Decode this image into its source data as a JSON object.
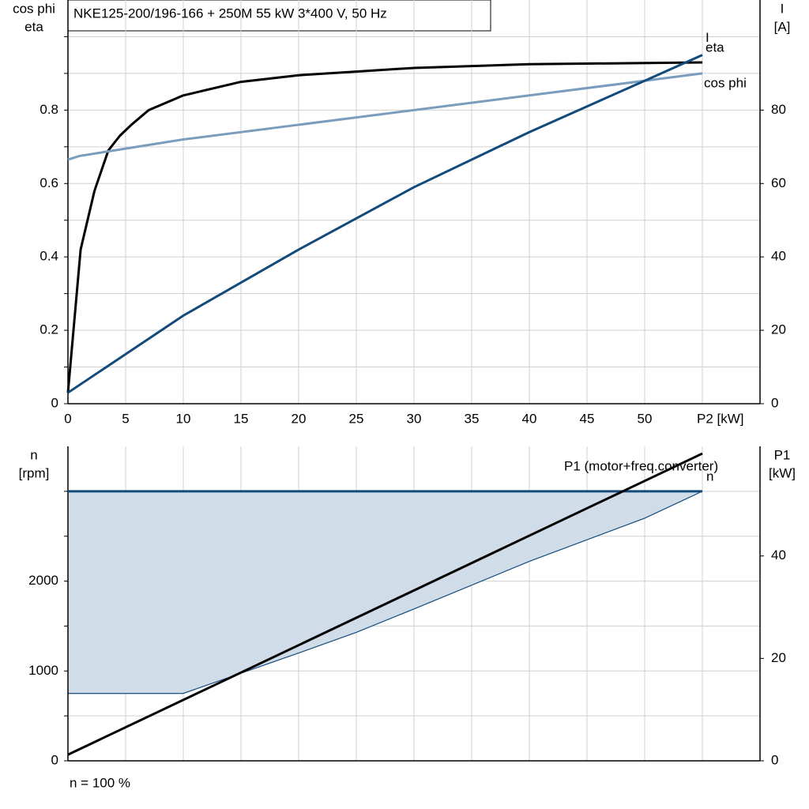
{
  "chart_data": [
    {
      "type": "line",
      "title": "NKE125-200/196-166 + 250M   55 kW   3*400 V, 50 Hz",
      "y_label": [
        "cos phi",
        "eta"
      ],
      "y2_label": [
        "I",
        "[A]"
      ],
      "xlim": [
        0,
        60
      ],
      "xticks": [
        0,
        5,
        10,
        15,
        20,
        25,
        30,
        35,
        40,
        45,
        50,
        {
          "value": 55,
          "label": "P2 [kW]"
        }
      ],
      "xtick_labels": true,
      "ylim": [
        0,
        1.1
      ],
      "yticks": [
        0.0,
        0.2,
        0.4,
        0.6,
        0.8
      ],
      "yminorticks": [
        0.1,
        0.3,
        0.5,
        0.7,
        0.9,
        1.0
      ],
      "y2lim": [
        0,
        110
      ],
      "y2ticks": [
        0,
        20,
        40,
        60,
        80
      ],
      "grid": true,
      "series": [
        {
          "name": "eta",
          "color": "#000000",
          "axis": "y",
          "x": [
            0,
            1.1,
            2.3,
            3.5,
            4.5,
            5.5,
            7,
            10,
            15,
            20,
            25,
            30,
            40,
            55
          ],
          "values": [
            0.03,
            0.42,
            0.58,
            0.69,
            0.73,
            0.76,
            0.8,
            0.84,
            0.877,
            0.895,
            0.905,
            0.915,
            0.925,
            0.93
          ]
        },
        {
          "name": "cos phi",
          "color": "#7a9cbd",
          "axis": "y",
          "x": [
            0,
            1,
            3,
            10,
            20,
            30,
            40,
            50,
            55
          ],
          "values": [
            0.665,
            0.675,
            0.685,
            0.72,
            0.76,
            0.8,
            0.84,
            0.88,
            0.9
          ]
        },
        {
          "name": "I",
          "color": "#134a7c",
          "axis": "y2",
          "x": [
            0,
            10,
            20,
            30,
            40,
            50,
            55
          ],
          "values": [
            3,
            24,
            42,
            59,
            74,
            88,
            95
          ]
        }
      ]
    },
    {
      "type": "line",
      "y_label": [
        "n",
        "[rpm]"
      ],
      "y2_label": [
        "P1",
        "[kW]"
      ],
      "note": "n = 100 %",
      "xlim": [
        0,
        60
      ],
      "xticks": [
        5,
        10,
        15,
        20,
        25,
        30,
        35,
        40,
        45,
        50,
        55
      ],
      "xtick_labels": false,
      "ylim": [
        0,
        3500
      ],
      "yticks": [
        0,
        1000,
        2000
      ],
      "yminorticks": [
        500,
        1500,
        2500,
        3000
      ],
      "y2lim": [
        0,
        61.4
      ],
      "y2ticks": [
        0,
        20,
        40
      ],
      "grid": true,
      "area": {
        "color": "#d0dce8",
        "line_color": "#134a7c",
        "x": [
          0,
          10,
          20,
          25,
          30,
          40,
          50,
          55
        ],
        "lower": [
          750,
          750,
          1200,
          1430,
          1690,
          2220,
          2700,
          3000
        ]
      },
      "series": [
        {
          "name": "n",
          "color": "#134a7c",
          "axis": "y",
          "x": [
            0,
            55
          ],
          "values": [
            3000,
            3000
          ]
        },
        {
          "name": "P1 (motor+freq.converter)",
          "color": "#000000",
          "axis": "y2",
          "x": [
            0,
            55
          ],
          "values": [
            1.2,
            60
          ]
        }
      ]
    }
  ]
}
